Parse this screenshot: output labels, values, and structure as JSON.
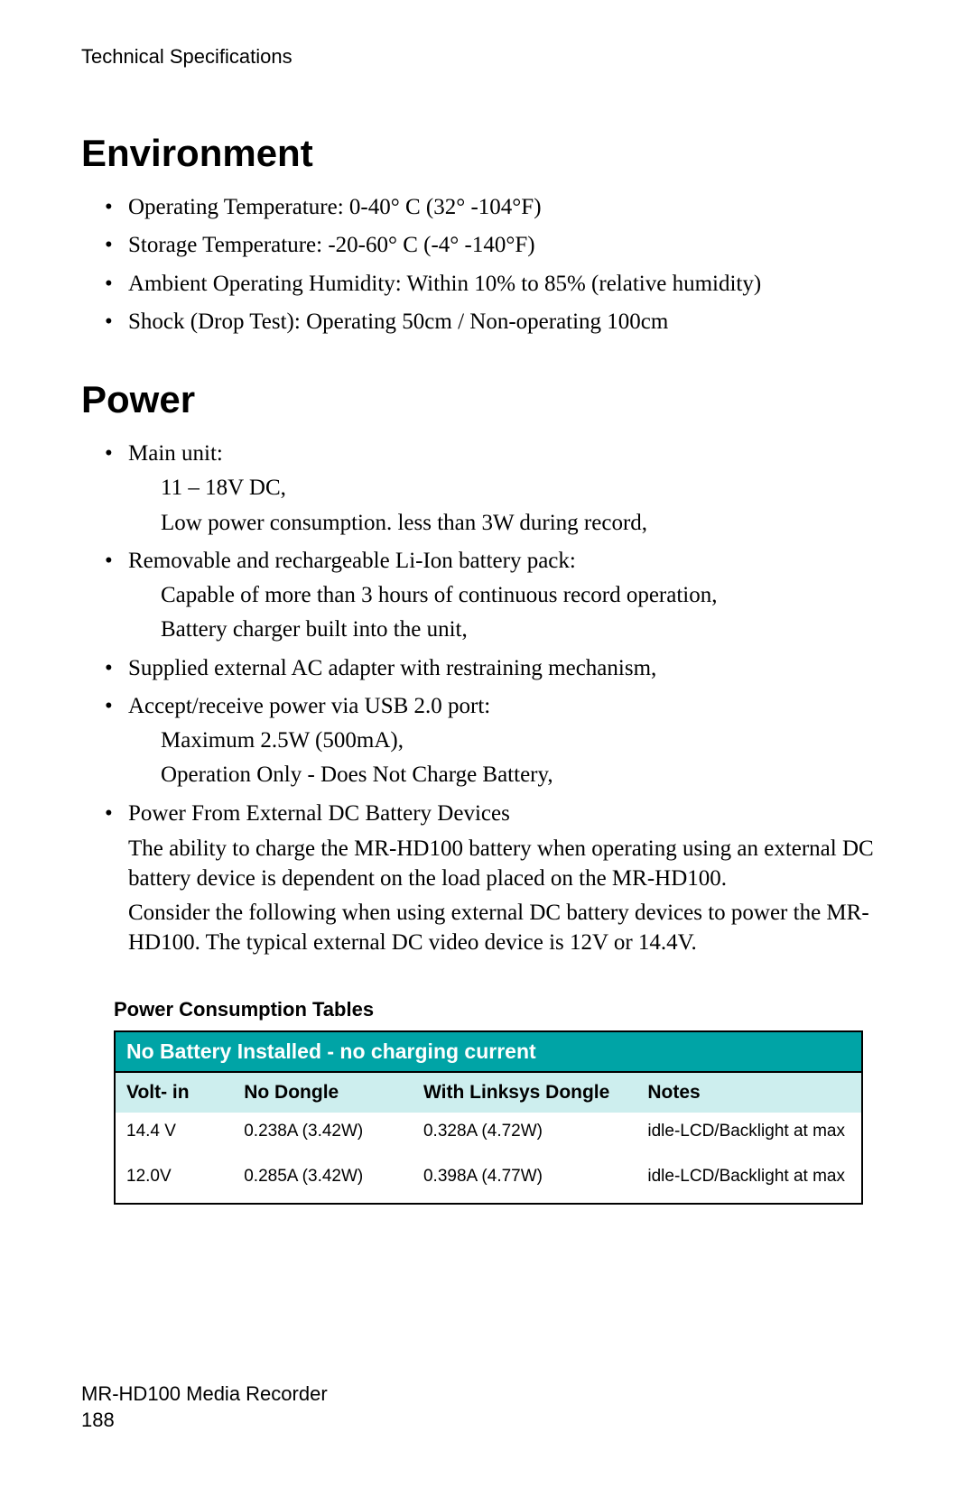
{
  "running_head": "Technical Specifications",
  "sections": {
    "environment": {
      "title": "Environment",
      "items": [
        "Operating Temperature: 0-40° C (32° -104°F)",
        "Storage Temperature: -20-60° C (-4° -140°F)",
        "Ambient Operating Humidity: Within 10% to 85% (relative humidity)",
        "Shock (Drop Test): Operating 50cm / Non-operating 100cm"
      ]
    },
    "power": {
      "title": "Power",
      "items": [
        {
          "head": "Main unit:",
          "sub": [
            "11 – 18V DC,",
            "Low power consumption. less than 3W during record,"
          ]
        },
        {
          "head": "Removable and rechargeable Li-Ion battery pack:",
          "sub": [
            "Capable of more than 3 hours of continuous record operation,",
            "Battery charger built into the unit,"
          ]
        },
        {
          "head": "Supplied external AC adapter with restraining mechanism,",
          "sub": []
        },
        {
          "head": "Accept/receive power via USB 2.0 port:",
          "sub": [
            "Maximum 2.5W (500mA),",
            "Operation Only - Does Not Charge Battery,"
          ]
        },
        {
          "head": "Power From External DC Battery Devices",
          "paras": [
            "The ability to charge the MR-HD100 battery when operating using an external DC battery device is dependent on the load placed on the MR-HD100.",
            "Consider the following when using external DC battery devices to power the MR-HD100. The typical external DC video device is 12V or 14.4V."
          ]
        }
      ]
    }
  },
  "table": {
    "caption": "Power Consumption Tables",
    "title": "No Battery Installed - no charging current",
    "title_bg": "#00a4a6",
    "title_fg": "#ffffff",
    "head_bg": "#cdeeee",
    "columns": [
      "Volt- in",
      "No Dongle",
      "With Linksys Dongle",
      "Notes"
    ],
    "rows": [
      [
        "14.4 V",
        "0.238A (3.42W)",
        "0.328A (4.72W)",
        "idle-LCD/Backlight at max"
      ],
      [
        "12.0V",
        "0.285A (3.42W)",
        "0.398A (4.77W)",
        "idle-LCD/Backlight at max"
      ]
    ]
  },
  "footer": {
    "product": "MR-HD100 Media Recorder",
    "page": "188"
  }
}
